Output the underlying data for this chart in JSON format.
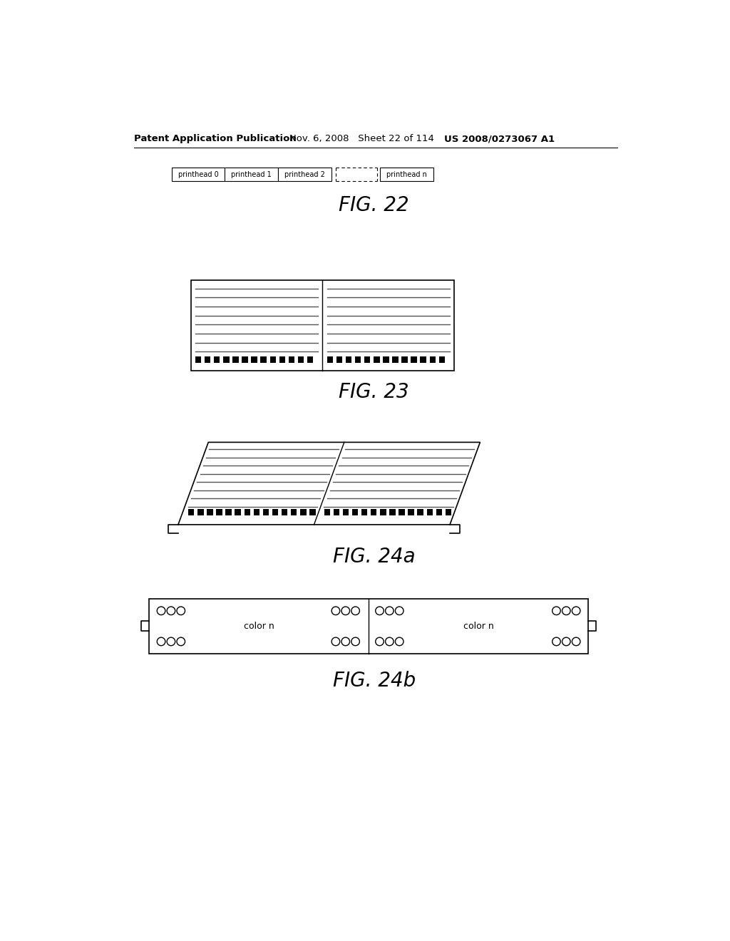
{
  "header_left": "Patent Application Publication",
  "header_mid": "Nov. 6, 2008   Sheet 22 of 114",
  "header_right": "US 2008/0273067 A1",
  "fig22_label": "FIG. 22",
  "fig23_label": "FIG. 23",
  "fig24a_label": "FIG. 24a",
  "fig24b_label": "FIG. 24b",
  "fig22_labels": [
    "printhead 0",
    "printhead 1",
    "printhead 2",
    "printhead n"
  ],
  "bg_color": "#ffffff",
  "line_color": "#000000"
}
